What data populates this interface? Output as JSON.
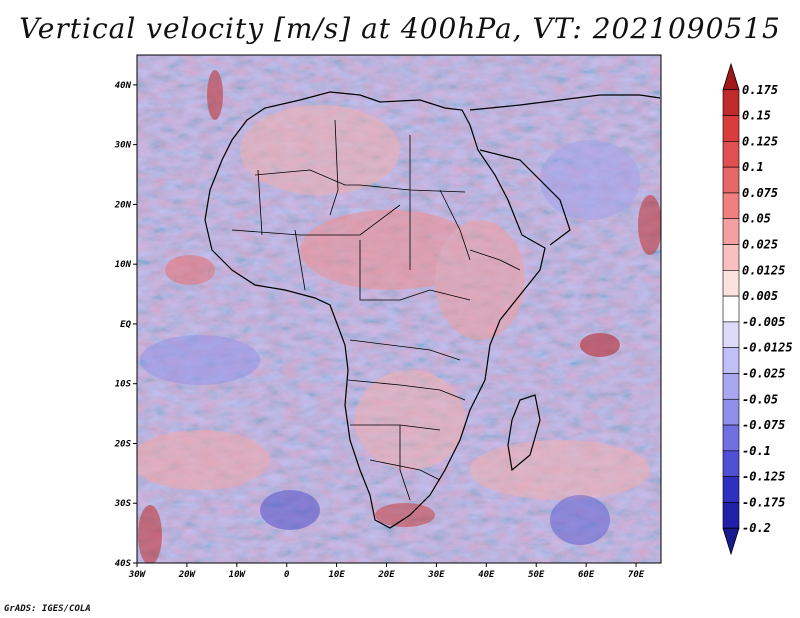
{
  "title": "Vertical velocity [m/s] at 400hPa, VT: 2021090515",
  "footer": "GrADS: IGES/COLA",
  "map": {
    "region": "Africa",
    "variable": "Vertical velocity",
    "units": "m/s",
    "level": "400hPa",
    "valid_time": "2021090515",
    "lon_range": [
      -30,
      75
    ],
    "lat_range": [
      -40,
      45
    ],
    "x_ticks": [
      "30W",
      "20W",
      "10W",
      "0",
      "10E",
      "20E",
      "30E",
      "40E",
      "50E",
      "60E",
      "70E"
    ],
    "y_ticks": [
      "40N",
      "30N",
      "20N",
      "10N",
      "EQ",
      "10S",
      "20S",
      "30S",
      "40S"
    ]
  },
  "colorbar": {
    "labels": [
      "0.175",
      "0.15",
      "0.125",
      "0.1",
      "0.075",
      "0.05",
      "0.025",
      "0.0125",
      "0.005",
      "-0.005",
      "-0.0125",
      "-0.025",
      "-0.05",
      "-0.075",
      "-0.1",
      "-0.125",
      "-0.175",
      "-0.2"
    ],
    "colors": [
      "#a01818",
      "#c02a2a",
      "#d83c3c",
      "#e05050",
      "#e86868",
      "#f08080",
      "#f5a0a0",
      "#f9c0c0",
      "#fde0e0",
      "#ffffff",
      "#dcdcfa",
      "#c0c0f6",
      "#a8a8f2",
      "#9090ec",
      "#7070e0",
      "#5050d4",
      "#3030c0",
      "#2020a8",
      "#1a1a90"
    ]
  }
}
